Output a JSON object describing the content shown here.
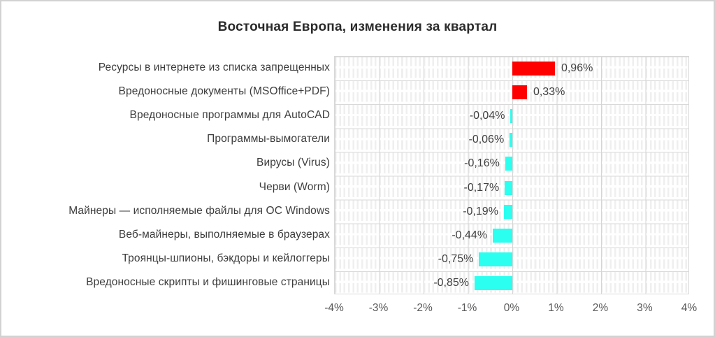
{
  "frame": {
    "background": "#ffffff",
    "border_color": "#d2d2d2"
  },
  "chart_data": {
    "type": "bar",
    "orientation": "horizontal",
    "title": "Восточная Европа, изменения за квартал",
    "categories": [
      "Ресурсы в интернете из списка запрещенных",
      "Вредоносные документы (MSOffice+PDF)",
      "Вредоносные программы для AutoCAD",
      "Программы-вымогатели",
      "Вирусы (Virus)",
      "Черви (Worm)",
      "Майнеры — исполняемые файлы для ОС Windows",
      "Веб-майнеры, выполняемые в браузерах",
      "Троянцы-шпионы, бэкдоры и кейлоггеры",
      "Вредоносные скрипты и фишинговые страницы"
    ],
    "values": [
      0.96,
      0.33,
      -0.04,
      -0.06,
      -0.16,
      -0.17,
      -0.19,
      -0.44,
      -0.75,
      -0.85
    ],
    "value_labels": [
      "0,96%",
      "0,33%",
      "-0,04%",
      "-0,06%",
      "-0,16%",
      "-0,17%",
      "-0,19%",
      "-0,44%",
      "-0,75%",
      "-0,85%"
    ],
    "xlabel": "",
    "ylabel": "",
    "xlim": [
      -4,
      4
    ],
    "x_ticks": [
      "-4%",
      "-3%",
      "-2%",
      "-1%",
      "0%",
      "1%",
      "2%",
      "3%",
      "4%"
    ],
    "grid": {
      "vertical_major_step_pct": 1,
      "vertical_minor_step_pct": 0.1,
      "horizontal_rows": true
    },
    "legend_position": "none",
    "colors": {
      "positive_bar": "#ff0000",
      "negative_bar": "#2bfff0",
      "grid_major": "#d9d9d9",
      "grid_minor": "#efefef",
      "title_text": "#2b2b2b",
      "category_text": "#3c3c3c",
      "value_text": "#404040",
      "axis_text": "#595959"
    }
  }
}
